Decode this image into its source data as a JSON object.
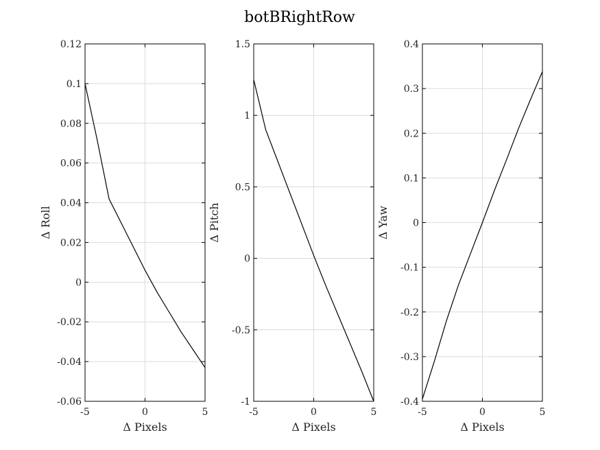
{
  "figure_title": "botBRightRow",
  "chart_data": [
    {
      "type": "line",
      "title": "",
      "xlabel": "Δ Pixels",
      "ylabel": "Δ Roll",
      "xlim": [
        -5,
        5
      ],
      "ylim": [
        -0.06,
        0.12
      ],
      "xticks": [
        -5,
        0,
        5
      ],
      "xtick_labels": [
        "-5",
        "0",
        "5"
      ],
      "yticks": [
        -0.06,
        -0.04,
        -0.02,
        0,
        0.02,
        0.04,
        0.06,
        0.08,
        0.1,
        0.12
      ],
      "ytick_labels": [
        "-0.06",
        "-0.04",
        "-0.02",
        "0",
        "0.02",
        "0.04",
        "0.06",
        "0.08",
        "0.1",
        "0.12"
      ],
      "grid": true,
      "series": [
        {
          "x": [
            -5,
            -4,
            -3,
            -2,
            -1,
            0,
            1,
            2,
            3,
            4,
            5
          ],
          "values": [
            0.1,
            0.072,
            0.042,
            0.03,
            0.018,
            0.006,
            -0.005,
            -0.015,
            -0.025,
            -0.034,
            -0.043
          ]
        }
      ]
    },
    {
      "type": "line",
      "title": "",
      "xlabel": "Δ Pixels",
      "ylabel": "Δ Pitch",
      "xlim": [
        -5,
        5
      ],
      "ylim": [
        -1,
        1.5
      ],
      "xticks": [
        -5,
        0,
        5
      ],
      "xtick_labels": [
        "-5",
        "0",
        "5"
      ],
      "yticks": [
        -1,
        -0.5,
        0,
        0.5,
        1,
        1.5
      ],
      "ytick_labels": [
        "-1",
        "-0.5",
        "0",
        "0.5",
        "1",
        "1.5"
      ],
      "grid": true,
      "series": [
        {
          "x": [
            -5,
            -4,
            -3,
            -2,
            -1,
            0,
            1,
            2,
            3,
            4,
            5
          ],
          "values": [
            1.25,
            0.9,
            0.68,
            0.46,
            0.24,
            0.02,
            -0.19,
            -0.39,
            -0.59,
            -0.79,
            -1.0
          ]
        }
      ]
    },
    {
      "type": "line",
      "title": "",
      "xlabel": "Δ Pixels",
      "ylabel": "Δ Yaw",
      "xlim": [
        -5,
        5
      ],
      "ylim": [
        -0.4,
        0.4
      ],
      "xticks": [
        -5,
        0,
        5
      ],
      "xtick_labels": [
        "-5",
        "0",
        "5"
      ],
      "yticks": [
        -0.4,
        -0.3,
        -0.2,
        -0.1,
        0,
        0.1,
        0.2,
        0.3,
        0.4
      ],
      "ytick_labels": [
        "-0.4",
        "-0.3",
        "-0.2",
        "-0.1",
        "0",
        "0.1",
        "0.2",
        "0.3",
        "0.4"
      ],
      "grid": true,
      "series": [
        {
          "x": [
            -5,
            -4,
            -3,
            -2,
            -1,
            0,
            1,
            2,
            3,
            4,
            5
          ],
          "values": [
            -0.395,
            -0.31,
            -0.22,
            -0.14,
            -0.07,
            0.0,
            0.072,
            0.14,
            0.21,
            0.275,
            0.338
          ]
        }
      ]
    }
  ]
}
